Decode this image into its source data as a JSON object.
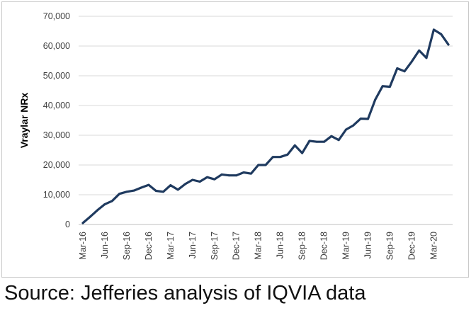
{
  "caption": "Source: Jefferies analysis of IQVIA data",
  "chart_data": {
    "type": "line",
    "title": "",
    "xlabel": "",
    "ylabel": "Vraylar NRx",
    "ylim": [
      0,
      70000
    ],
    "yticks": [
      0,
      10000,
      20000,
      30000,
      40000,
      50000,
      60000,
      70000
    ],
    "ytick_labels": [
      "0",
      "10,000",
      "20,000",
      "30,000",
      "40,000",
      "50,000",
      "60,000",
      "70,000"
    ],
    "grid": true,
    "legend": "none",
    "line_color": "#1f3a5f",
    "x_tick_labels": [
      "Mar-16",
      "Jun-16",
      "Sep-16",
      "Dec-16",
      "Mar-17",
      "Jun-17",
      "Sep-17",
      "Dec-17",
      "Mar-18",
      "Jun-18",
      "Sep-18",
      "Dec-18",
      "Mar-19",
      "Jun-19",
      "Sep-19",
      "Dec-19",
      "Mar-20"
    ],
    "x": [
      "Mar-16",
      "Apr-16",
      "May-16",
      "Jun-16",
      "Jul-16",
      "Aug-16",
      "Sep-16",
      "Oct-16",
      "Nov-16",
      "Dec-16",
      "Jan-17",
      "Feb-17",
      "Mar-17",
      "Apr-17",
      "May-17",
      "Jun-17",
      "Jul-17",
      "Aug-17",
      "Sep-17",
      "Oct-17",
      "Nov-17",
      "Dec-17",
      "Jan-18",
      "Feb-18",
      "Mar-18",
      "Apr-18",
      "May-18",
      "Jun-18",
      "Jul-18",
      "Aug-18",
      "Sep-18",
      "Oct-18",
      "Nov-18",
      "Dec-18",
      "Jan-19",
      "Feb-19",
      "Mar-19",
      "Apr-19",
      "May-19",
      "Jun-19",
      "Jul-19",
      "Aug-19",
      "Sep-19",
      "Oct-19",
      "Nov-19",
      "Dec-19",
      "Jan-20",
      "Feb-20",
      "Mar-20",
      "Apr-20",
      "May-20"
    ],
    "series": [
      {
        "values": [
          500,
          2600,
          4800,
          6800,
          7900,
          10300,
          11000,
          11400,
          12400,
          13300,
          11300,
          11000,
          13200,
          11700,
          13600,
          15000,
          14400,
          15900,
          15200,
          16800,
          16500,
          16500,
          17500,
          17100,
          20000,
          20000,
          22700,
          22700,
          23500,
          26600,
          24000,
          28100,
          27800,
          27800,
          29700,
          28400,
          31900,
          33300,
          35600,
          35500,
          42000,
          46500,
          46300,
          52500,
          51500,
          54800,
          58500,
          56000,
          65500,
          64000,
          60500
        ]
      }
    ]
  }
}
